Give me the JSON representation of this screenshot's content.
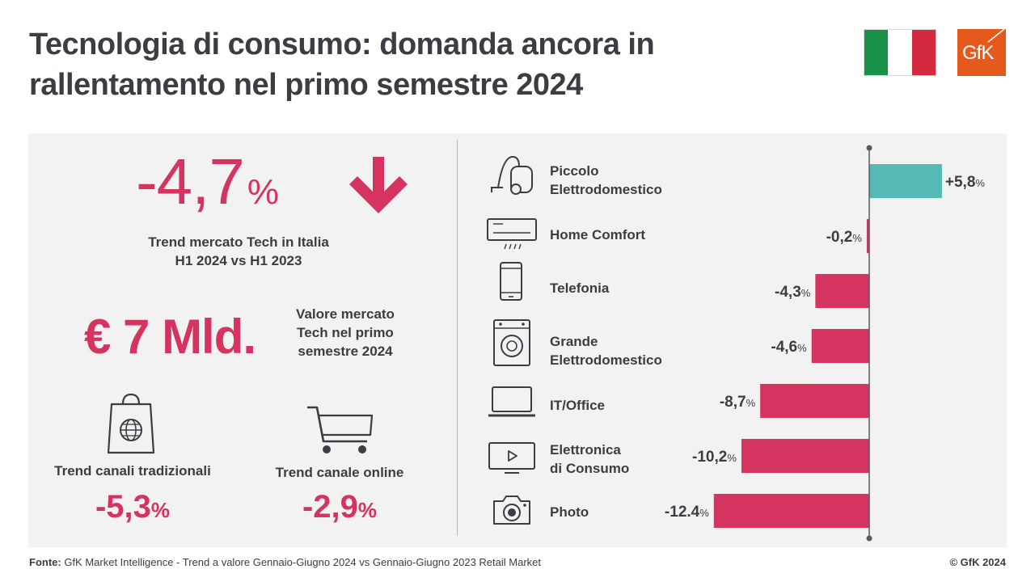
{
  "header": {
    "title_line1": "Tecnologia di consumo: domanda ancora in",
    "title_line2": "rallentamento nel primo semestre 2024"
  },
  "flag_colors": [
    "#1a9148",
    "#ffffff",
    "#d32a3d"
  ],
  "logo": {
    "text": "GfK",
    "color": "#e55a1c"
  },
  "kpi": {
    "trend_value": "-4,7",
    "trend_unit": "%",
    "trend_icon": "down-arrow-icon",
    "trend_label_line1": "Trend mercato Tech in Italia",
    "trend_label_line2": "H1 2024 vs H1 2023",
    "market_value": "€ 7 Mld.",
    "market_label_line1": "Valore mercato",
    "market_label_line2": "Tech nel primo",
    "market_label_line3": "semestre 2024"
  },
  "channels": {
    "traditional": {
      "icon": "shopping-bag-globe-icon",
      "label": "Trend canali tradizionali",
      "value": "-5,3",
      "unit": "%"
    },
    "online": {
      "icon": "shopping-cart-icon",
      "label": "Trend canale online",
      "value": "-2,9",
      "unit": "%"
    }
  },
  "colors": {
    "accent": "#d4345f",
    "positive": "#55bab4",
    "text": "#3a3d42",
    "panel": "#f2f2f2"
  },
  "chart_data": {
    "type": "bar",
    "orientation": "horizontal",
    "categories": [
      "Piccolo Elettrodomestico",
      "Home Comfort",
      "Telefonia",
      "Grande Elettrodomestico",
      "IT/Office",
      "Elettronica di Consumo",
      "Photo"
    ],
    "values": [
      5.8,
      -0.2,
      -4.3,
      -4.6,
      -8.7,
      -10.2,
      -12.4
    ],
    "value_labels": [
      "+5,8",
      "-0,2",
      "-4,3",
      "-4,6",
      "-8,7",
      "-10,2",
      "-12.4"
    ],
    "value_unit": "%",
    "label_lines": [
      [
        "Piccolo",
        "Elettrodomestico"
      ],
      [
        "Home Comfort"
      ],
      [
        "Telefonia"
      ],
      [
        "Grande",
        "Elettrodomestico"
      ],
      [
        "IT/Office"
      ],
      [
        "Elettronica",
        "di Consumo"
      ],
      [
        "Photo"
      ]
    ],
    "icons": [
      "vacuum-cleaner-icon",
      "air-conditioner-icon",
      "smartphone-icon",
      "washing-machine-icon",
      "laptop-icon",
      "tv-icon",
      "camera-icon"
    ],
    "colors": {
      "positive": "#55bab4",
      "negative": "#d4345f"
    },
    "baseline": 0
  },
  "footer": {
    "source_label": "Fonte:",
    "source_text": " GfK Market Intelligence  - Trend a valore Gennaio-Giugno 2024 vs Gennaio-Giugno 2023 Retail Market",
    "copyright": "© GfK 2024"
  }
}
